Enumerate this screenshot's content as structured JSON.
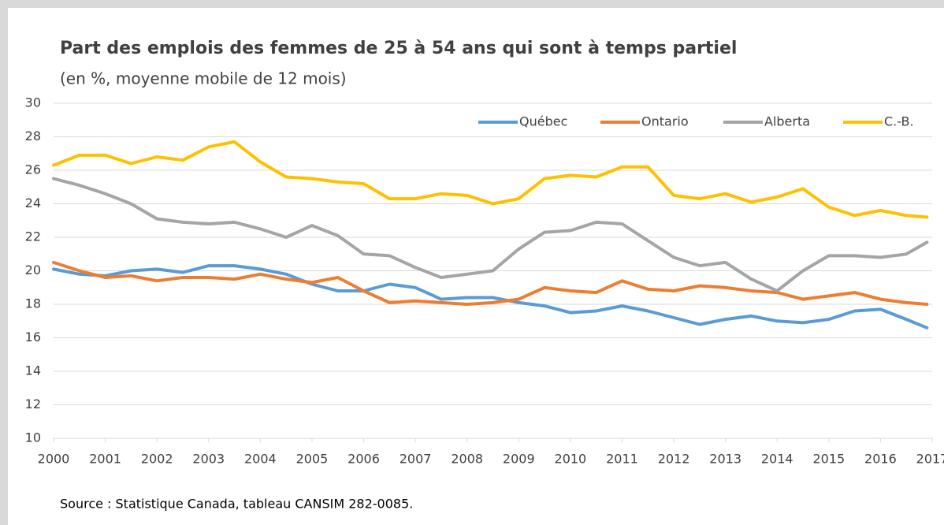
{
  "chart_data": {
    "type": "line",
    "title": "Part des emplois des femmes de 25 à 54 ans qui sont à temps partiel",
    "subtitle": "(en %, moyenne mobile de 12 mois)",
    "note": "Source : Statistique Canada, tableau CANSIM 282-0085.",
    "x": [
      2000,
      2000.5,
      2001,
      2001.5,
      2002,
      2002.5,
      2003,
      2003.5,
      2004,
      2004.5,
      2005,
      2005.5,
      2006,
      2006.5,
      2007,
      2007.5,
      2008,
      2008.5,
      2009,
      2009.5,
      2010,
      2010.5,
      2011,
      2011.5,
      2012,
      2012.5,
      2013,
      2013.5,
      2014,
      2014.5,
      2015,
      2015.5,
      2016,
      2016.5,
      2016.9
    ],
    "series": [
      {
        "name": "Québec",
        "color": "#5b9bd5",
        "values": [
          20.1,
          19.8,
          19.7,
          20.0,
          20.1,
          19.9,
          20.3,
          20.3,
          20.1,
          19.8,
          19.2,
          18.8,
          18.8,
          19.2,
          19.0,
          18.3,
          18.4,
          18.4,
          18.1,
          17.9,
          17.5,
          17.6,
          17.9,
          17.6,
          17.2,
          16.8,
          17.1,
          17.3,
          17.0,
          16.9,
          17.1,
          17.6,
          17.7,
          17.1,
          16.6
        ]
      },
      {
        "name": "Ontario",
        "color": "#ed7d31",
        "values": [
          20.5,
          20.0,
          19.6,
          19.7,
          19.4,
          19.6,
          19.6,
          19.5,
          19.8,
          19.5,
          19.3,
          19.6,
          18.8,
          18.1,
          18.2,
          18.1,
          18.0,
          18.1,
          18.3,
          19.0,
          18.8,
          18.7,
          19.4,
          18.9,
          18.8,
          19.1,
          19.0,
          18.8,
          18.7,
          18.3,
          18.5,
          18.7,
          18.3,
          18.1,
          18.0
        ]
      },
      {
        "name": "Alberta",
        "color": "#a5a5a5",
        "values": [
          25.5,
          25.1,
          24.6,
          24.0,
          23.1,
          22.9,
          22.8,
          22.9,
          22.5,
          22.0,
          22.7,
          22.1,
          21.0,
          20.9,
          20.2,
          19.6,
          19.8,
          20.0,
          21.3,
          22.3,
          22.4,
          22.9,
          22.8,
          21.8,
          20.8,
          20.3,
          20.5,
          19.5,
          18.8,
          20.0,
          20.9,
          20.9,
          20.8,
          21.0,
          21.7
        ]
      },
      {
        "name": "C.-B.",
        "color": "#ffc000",
        "values": [
          26.3,
          26.9,
          26.9,
          26.4,
          26.8,
          26.6,
          27.4,
          27.7,
          26.5,
          25.6,
          25.5,
          25.3,
          25.2,
          24.3,
          24.3,
          24.6,
          24.5,
          24.0,
          24.3,
          25.5,
          25.7,
          25.6,
          26.2,
          26.2,
          24.5,
          24.3,
          24.6,
          24.1,
          24.4,
          24.9,
          23.8,
          23.3,
          23.6,
          23.3,
          23.2
        ]
      }
    ],
    "xlim": [
      2000,
      2017
    ],
    "xticks": [
      2000,
      2001,
      2002,
      2003,
      2004,
      2005,
      2006,
      2007,
      2008,
      2009,
      2010,
      2011,
      2012,
      2013,
      2014,
      2015,
      2016,
      2017
    ],
    "ylim": [
      10,
      30
    ],
    "yticks": [
      10,
      12,
      14,
      16,
      18,
      20,
      22,
      24,
      26,
      28,
      30
    ],
    "grid": true,
    "legend": "top-right"
  }
}
